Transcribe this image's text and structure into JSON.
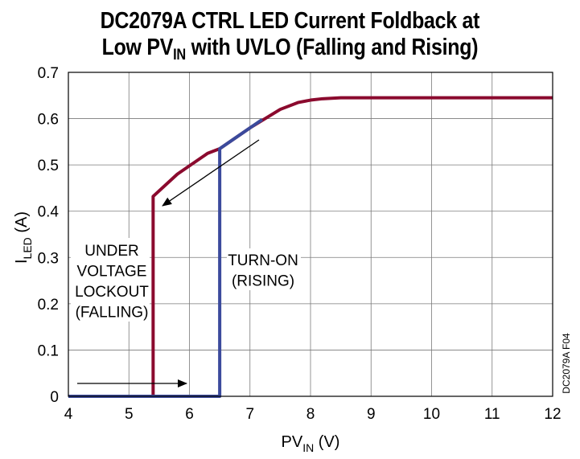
{
  "title": {
    "line1": "DC2079A CTRL LED Current Foldback at",
    "line2_pre": "Low PV",
    "line2_sub": "IN",
    "line2_post": " with UVLO (Falling and Rising)"
  },
  "colors": {
    "falling": "#8b0a2e",
    "rising": "#3b4a9c",
    "grid": "#7a7a7a"
  },
  "chart_data": {
    "type": "line",
    "title": "DC2079A CTRL LED Current Foldback at Low PVIN with UVLO (Falling and Rising)",
    "xlabel": {
      "main": "PV",
      "sub": "IN",
      "unit": " (V)"
    },
    "ylabel": {
      "main": "I",
      "sub": "LED",
      "unit": " (A)"
    },
    "xlim": [
      4,
      12
    ],
    "ylim": [
      0,
      0.7
    ],
    "xticks": [
      4,
      5,
      6,
      7,
      8,
      9,
      10,
      11,
      12
    ],
    "yticks": [
      0,
      0.1,
      0.2,
      0.3,
      0.4,
      0.5,
      0.6,
      0.7
    ],
    "ytick_labels": [
      "0",
      "0.1",
      "0.2",
      "0.3",
      "0.4",
      "0.5",
      "0.6",
      "0.7"
    ],
    "grid": true,
    "series": [
      {
        "name": "UNDER VOLTAGE LOCKOUT (FALLING)",
        "x": [
          4,
          5.4,
          5.4,
          5.8,
          6.3,
          6.5,
          7.0,
          7.5,
          7.8,
          8.0,
          8.2,
          8.5,
          9,
          10,
          11,
          12
        ],
        "y": [
          0,
          0,
          0.432,
          0.48,
          0.525,
          0.535,
          0.58,
          0.62,
          0.635,
          0.64,
          0.643,
          0.645,
          0.645,
          0.645,
          0.645,
          0.645
        ]
      },
      {
        "name": "TURN-ON (RISING)",
        "x": [
          4,
          6.5,
          6.5,
          6.8,
          7.2
        ],
        "y": [
          0,
          0,
          0.535,
          0.562,
          0.598
        ]
      }
    ],
    "annotations": [
      {
        "lines": [
          "UNDER",
          "VOLTAGE",
          "LOCKOUT",
          "(FALLING)"
        ]
      },
      {
        "lines": [
          "TURN-ON",
          "(RISING)"
        ]
      }
    ],
    "code": "DC2079A F04"
  }
}
